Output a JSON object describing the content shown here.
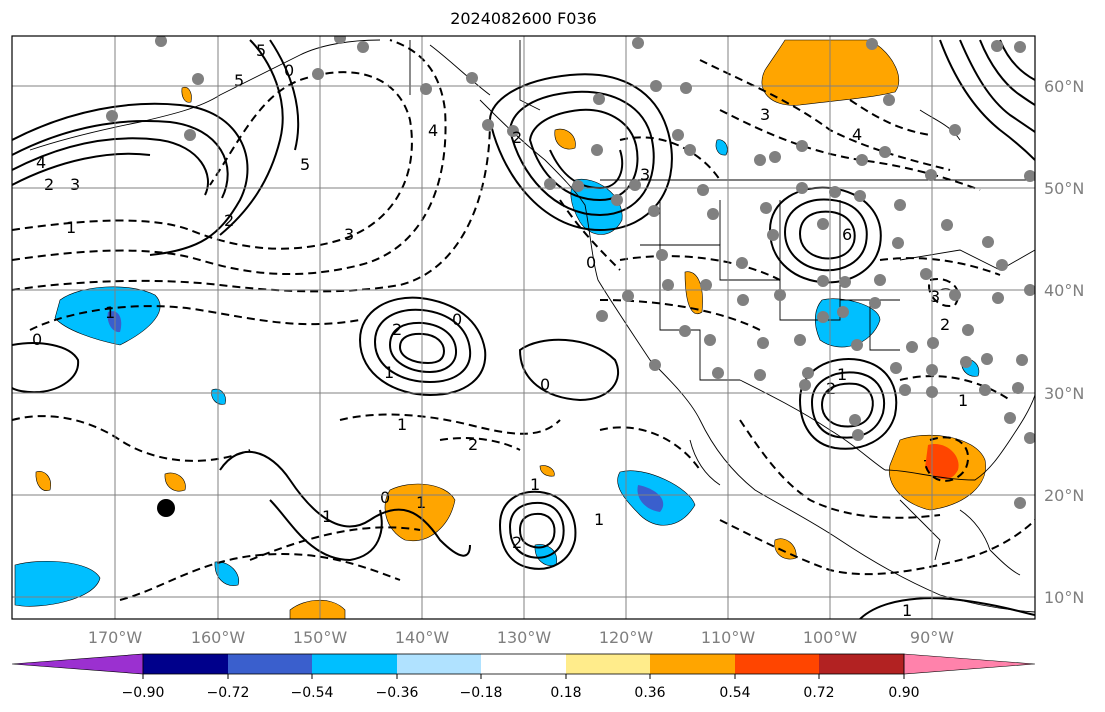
{
  "title": "2024082600 F036",
  "lon_labels": [
    "170°W",
    "160°W",
    "150°W",
    "140°W",
    "130°W",
    "120°W",
    "110°W",
    "100°W",
    "90°W"
  ],
  "lat_labels": [
    "60°N",
    "50°N",
    "40°N",
    "30°N",
    "20°N",
    "10°N"
  ],
  "colorbar": {
    "colors": [
      "#9b30d0",
      "#00008b",
      "#3a5fcd",
      "#00bfff",
      "#b0e2ff",
      "#ffffff",
      "#ffec8b",
      "#ffa500",
      "#ff4500",
      "#b22222",
      "#ff82ab"
    ],
    "tick_labels": [
      "−0.90",
      "−0.72",
      "−0.54",
      "−0.36",
      "−0.18",
      "0.18",
      "0.36",
      "0.54",
      "0.72",
      "0.90"
    ]
  },
  "contour_labels": [
    "5",
    "0",
    "4",
    "5",
    "3",
    "1",
    "2",
    "3",
    "4",
    "5",
    "2",
    "0",
    "1",
    "2",
    "0",
    "1",
    "1",
    "2",
    "1",
    "0",
    "1",
    "1",
    "2",
    "1",
    "0",
    "3",
    "4",
    "6",
    "2",
    "1",
    "2",
    "3",
    "3",
    "2",
    "1",
    "0",
    "1"
  ],
  "colors": {
    "gridline": "#808080",
    "station_dot": "#808080",
    "fill_pos": "#ffa500",
    "fill_neg": "#00bfff"
  }
}
